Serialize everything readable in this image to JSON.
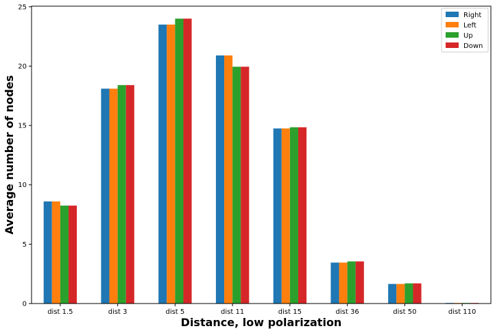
{
  "chart_data": {
    "type": "bar",
    "title": "",
    "xlabel": "Distance, low polarization",
    "ylabel": "Average number of nodes",
    "categories": [
      "dist 1.5",
      "dist 3",
      "dist 5",
      "dist 11",
      "dist 15",
      "dist 36",
      "dist 50",
      "dist 110"
    ],
    "series": [
      {
        "name": "Right",
        "color": "#1f77b4",
        "values": [
          8.6,
          18.1,
          23.5,
          20.9,
          14.75,
          3.45,
          1.65,
          0.05
        ]
      },
      {
        "name": "Left",
        "color": "#ff7f0e",
        "values": [
          8.6,
          18.1,
          23.5,
          20.9,
          14.75,
          3.45,
          1.65,
          0.05
        ]
      },
      {
        "name": "Up",
        "color": "#2ca02c",
        "values": [
          8.25,
          18.4,
          24.0,
          19.95,
          14.85,
          3.55,
          1.7,
          0.05
        ]
      },
      {
        "name": "Down",
        "color": "#d62728",
        "values": [
          8.25,
          18.4,
          24.0,
          19.95,
          14.85,
          3.55,
          1.7,
          0.05
        ]
      }
    ],
    "yticks": [
      0,
      5,
      10,
      15,
      20,
      25
    ],
    "ylim": [
      0,
      25.05
    ],
    "grid": false,
    "legend_position": "top-right"
  }
}
